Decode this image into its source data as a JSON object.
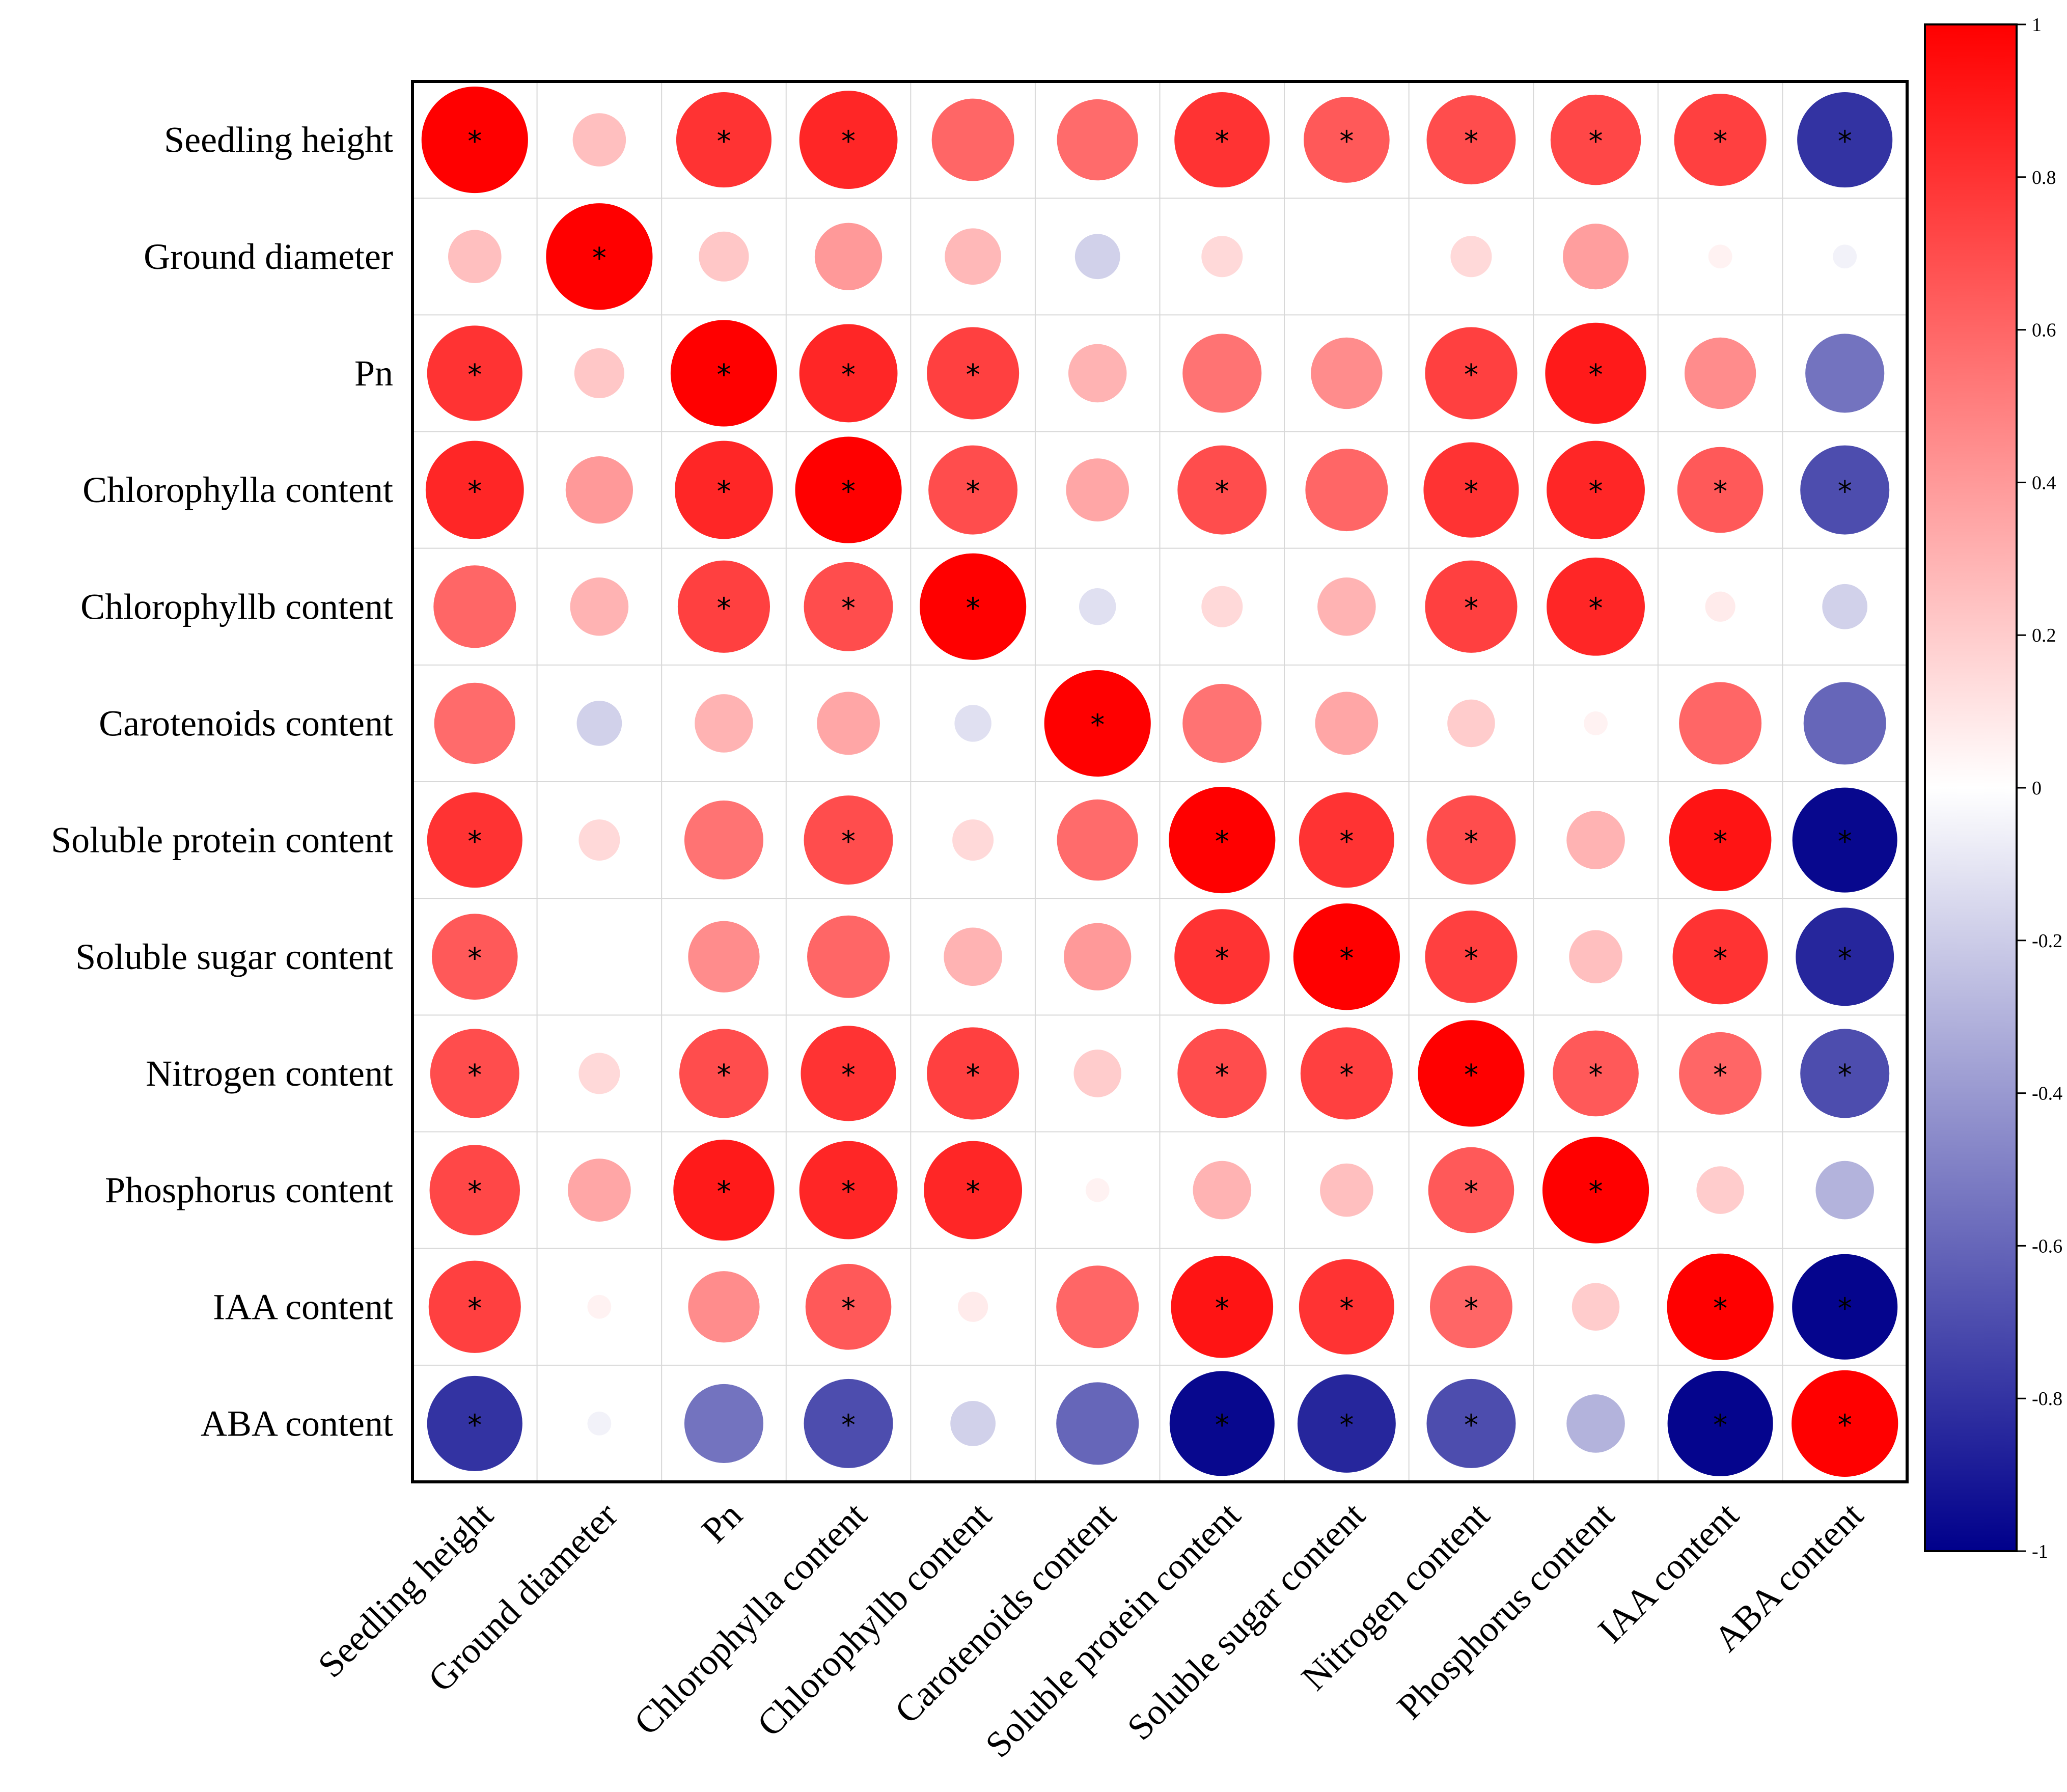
{
  "chart_data": {
    "type": "heatmap",
    "title": "",
    "variables": [
      "Seedling height",
      "Ground diameter",
      "Pn",
      "Chlorophylla content",
      "Chlorophyllb content",
      "Carotenoids content",
      "Soluble protein content",
      "Soluble sugar content",
      "Nitrogen content",
      "Phosphorus content",
      "IAA content",
      "ABA content"
    ],
    "matrix": [
      [
        1.0,
        0.25,
        0.8,
        0.85,
        0.6,
        0.58,
        0.8,
        0.65,
        0.7,
        0.72,
        0.75,
        -0.8
      ],
      [
        0.25,
        1.0,
        0.22,
        0.4,
        0.28,
        -0.18,
        0.15,
        0.0,
        0.15,
        0.38,
        0.05,
        -0.05
      ],
      [
        0.8,
        0.22,
        1.0,
        0.85,
        0.75,
        0.3,
        0.55,
        0.45,
        0.75,
        0.9,
        0.45,
        -0.55
      ],
      [
        0.85,
        0.4,
        0.85,
        1.0,
        0.7,
        0.35,
        0.7,
        0.6,
        0.8,
        0.85,
        0.65,
        -0.7
      ],
      [
        0.6,
        0.3,
        0.75,
        0.7,
        1.0,
        -0.12,
        0.15,
        0.3,
        0.75,
        0.85,
        0.08,
        -0.18
      ],
      [
        0.58,
        -0.18,
        0.3,
        0.35,
        -0.12,
        1.0,
        0.55,
        0.35,
        0.2,
        0.05,
        0.6,
        -0.6
      ],
      [
        0.8,
        0.15,
        0.55,
        0.7,
        0.15,
        0.58,
        1.0,
        0.8,
        0.7,
        0.3,
        0.92,
        -0.97
      ],
      [
        0.65,
        0.0,
        0.45,
        0.6,
        0.3,
        0.4,
        0.8,
        1.0,
        0.75,
        0.25,
        0.8,
        -0.85
      ],
      [
        0.7,
        0.15,
        0.7,
        0.8,
        0.75,
        0.2,
        0.7,
        0.75,
        1.0,
        0.65,
        0.6,
        -0.7
      ],
      [
        0.72,
        0.35,
        0.9,
        0.85,
        0.85,
        0.05,
        0.3,
        0.25,
        0.65,
        1.0,
        0.2,
        -0.3
      ],
      [
        0.75,
        0.05,
        0.45,
        0.65,
        0.08,
        0.6,
        0.92,
        0.8,
        0.6,
        0.2,
        1.0,
        -0.98
      ],
      [
        -0.8,
        -0.05,
        -0.55,
        -0.7,
        -0.18,
        -0.6,
        -0.97,
        -0.85,
        -0.7,
        -0.3,
        -0.98,
        1.0
      ]
    ],
    "significant": [
      [
        1,
        0,
        1,
        1,
        0,
        0,
        1,
        1,
        1,
        1,
        1,
        1
      ],
      [
        0,
        1,
        0,
        0,
        0,
        0,
        0,
        0,
        0,
        0,
        0,
        0
      ],
      [
        1,
        0,
        1,
        1,
        1,
        0,
        0,
        0,
        1,
        1,
        0,
        0
      ],
      [
        1,
        0,
        1,
        1,
        1,
        0,
        1,
        0,
        1,
        1,
        1,
        1
      ],
      [
        0,
        0,
        1,
        1,
        1,
        0,
        0,
        0,
        1,
        1,
        0,
        0
      ],
      [
        0,
        0,
        0,
        0,
        0,
        1,
        0,
        0,
        0,
        0,
        0,
        0
      ],
      [
        1,
        0,
        0,
        1,
        0,
        0,
        1,
        1,
        1,
        0,
        1,
        1
      ],
      [
        1,
        0,
        0,
        0,
        0,
        0,
        1,
        1,
        1,
        0,
        1,
        1
      ],
      [
        1,
        0,
        1,
        1,
        1,
        0,
        1,
        1,
        1,
        1,
        1,
        1
      ],
      [
        1,
        0,
        1,
        1,
        1,
        0,
        0,
        0,
        1,
        1,
        0,
        0
      ],
      [
        1,
        0,
        0,
        1,
        0,
        0,
        1,
        1,
        1,
        0,
        1,
        1
      ],
      [
        1,
        0,
        0,
        1,
        0,
        0,
        1,
        1,
        1,
        0,
        1,
        1
      ]
    ],
    "significance_marker": "*",
    "colorbar": {
      "range": [
        -1,
        1
      ],
      "ticks": [
        "1",
        "0.8",
        "0.6",
        "0.4",
        "0.2",
        "0",
        "-0.2",
        "-0.4",
        "-0.6",
        "-0.8",
        "-1"
      ],
      "tick_values": [
        1,
        0.8,
        0.6,
        0.4,
        0.2,
        0,
        -0.2,
        -0.4,
        -0.6,
        -0.8,
        -1
      ],
      "colors": {
        "negative": "#00008b",
        "neutral": "#ffffff",
        "positive": "#ff0000"
      }
    },
    "legend_position": "right"
  }
}
